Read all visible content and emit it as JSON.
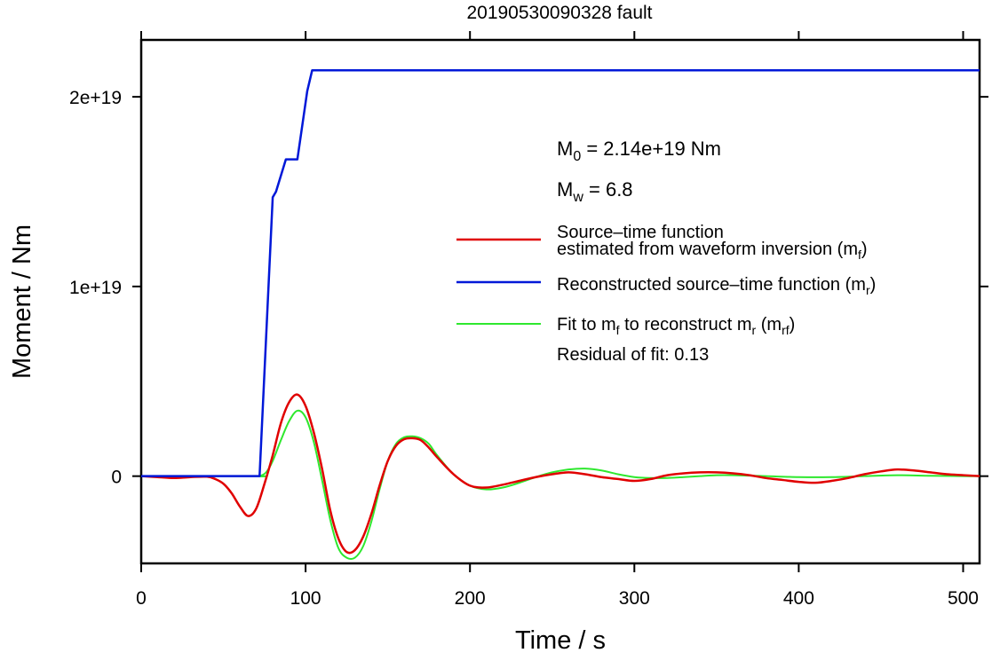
{
  "chart_data": {
    "type": "line",
    "title": "20190530090328 fault",
    "xlabel": "Time / s",
    "ylabel": "Moment / Nm",
    "xlim": [
      0,
      510
    ],
    "ylim": [
      -4.6e+18,
      2.3e+19
    ],
    "x_ticks": [
      0,
      100,
      200,
      300,
      400,
      500
    ],
    "x_tick_labels": [
      "0",
      "100",
      "200",
      "300",
      "400",
      "500"
    ],
    "y_ticks": [
      0,
      1e+19,
      2e+19
    ],
    "y_tick_labels": [
      "0",
      "1e+19",
      "2e+19"
    ],
    "grid": false,
    "legend_position": "right",
    "annotations": {
      "m0_symbol": "M",
      "m0_sub": "0",
      "m0_value": " = 2.14e+19 Nm",
      "mw_symbol": "M",
      "mw_sub": "w",
      "mw_value": " = 6.8",
      "residual": "Residual of fit: 0.13"
    },
    "series": [
      {
        "name": "Source–time function estimated from waveform inversion (mf)",
        "color": "#e00000",
        "x": [
          0,
          10,
          20,
          30,
          40,
          45,
          50,
          55,
          60,
          65,
          70,
          75,
          80,
          85,
          90,
          95,
          100,
          105,
          110,
          115,
          120,
          125,
          130,
          135,
          140,
          145,
          150,
          155,
          160,
          165,
          170,
          175,
          180,
          190,
          200,
          210,
          220,
          230,
          240,
          250,
          260,
          270,
          280,
          290,
          300,
          310,
          320,
          330,
          340,
          350,
          360,
          370,
          380,
          390,
          400,
          410,
          420,
          430,
          440,
          450,
          460,
          470,
          480,
          490,
          500,
          510
        ],
        "y": [
          0,
          -5e+16,
          -1e+17,
          -5e+16,
          -3e+16,
          -1.5e+17,
          -4e+17,
          -9e+17,
          -1.6e+18,
          -2.1e+18,
          -1.7e+18,
          -4e+17,
          1.1e+18,
          2.8e+18,
          3.9e+18,
          4.3e+18,
          3.7e+18,
          2.3e+18,
          4e+17,
          -1.8e+18,
          -3.3e+18,
          -4e+18,
          -3.9e+18,
          -3.2e+18,
          -2e+18,
          -5e+17,
          8e+17,
          1.6e+18,
          1.95e+18,
          2e+18,
          1.9e+18,
          1.5e+18,
          1e+18,
          1e+17,
          -5e+17,
          -6e+17,
          -4.5e+17,
          -2.5e+17,
          -5e+16,
          1e+17,
          2e+17,
          1e+17,
          -5e+16,
          -1.5e+17,
          -2.5e+17,
          -1.5e+17,
          5e+16,
          1.5e+17,
          2e+17,
          2e+17,
          1.5e+17,
          5e+16,
          -1e+17,
          -2e+17,
          -3e+17,
          -3.5e+17,
          -2.5e+17,
          -1e+17,
          1e+17,
          2.5e+17,
          3.5e+17,
          3e+17,
          2e+17,
          1e+17,
          5e+16,
          0
        ]
      },
      {
        "name": "Reconstructed source–time function (mr)",
        "color": "#0018d8",
        "x": [
          0,
          72,
          80,
          82,
          88,
          95,
          98,
          101,
          104,
          510
        ],
        "y": [
          0,
          0,
          1.47e+19,
          1.5e+19,
          1.67e+19,
          1.67e+19,
          1.85e+19,
          2.03e+19,
          2.14e+19,
          2.14e+19
        ]
      },
      {
        "name": "Fit to mf to reconstruct mr (mrf)",
        "color": "#2ee82e",
        "x": [
          0,
          70,
          72,
          76,
          80,
          85,
          90,
          95,
          100,
          105,
          110,
          115,
          120,
          125,
          130,
          135,
          140,
          145,
          150,
          155,
          160,
          165,
          170,
          175,
          180,
          190,
          200,
          210,
          220,
          230,
          240,
          250,
          260,
          270,
          280,
          290,
          300,
          310,
          320,
          330,
          340,
          350,
          360,
          380,
          400,
          420,
          440,
          460,
          480,
          500,
          510
        ],
        "y": [
          0,
          0,
          0,
          2e+17,
          8e+17,
          1.9e+18,
          2.9e+18,
          3.45e+18,
          3.1e+18,
          1.8e+18,
          -2e+17,
          -2.3e+18,
          -3.8e+18,
          -4.3e+18,
          -4.3e+18,
          -3.7e+18,
          -2.4e+18,
          -7e+17,
          8e+17,
          1.7e+18,
          2.05e+18,
          2.1e+18,
          2e+18,
          1.7e+18,
          1.1e+18,
          1e+17,
          -5e+17,
          -7e+17,
          -6e+17,
          -3.5e+17,
          -5e+16,
          2e+17,
          3.5e+17,
          4e+17,
          3e+17,
          1e+17,
          -5e+16,
          -1e+17,
          -1e+17,
          -5e+16,
          0,
          5e+16,
          5e+16,
          0,
          -5e+16,
          -5e+16,
          0,
          5e+16,
          2e+16,
          0,
          0
        ]
      }
    ],
    "legend": [
      {
        "line1": "Source–time function",
        "line2_prefix": "estimated from waveform inversion (m",
        "line2_sub": "f",
        "line2_suffix": ")",
        "color": "#e00000"
      },
      {
        "text_prefix": "Reconstructed source–time function (m",
        "text_sub": "r",
        "text_suffix": ")",
        "color": "#0018d8"
      },
      {
        "t1": "Fit to m",
        "s1": "f",
        "t2": " to reconstruct m",
        "s2": "r",
        "t3": " (m",
        "s3": "rf",
        "t4": ")",
        "color": "#2ee82e"
      }
    ]
  }
}
